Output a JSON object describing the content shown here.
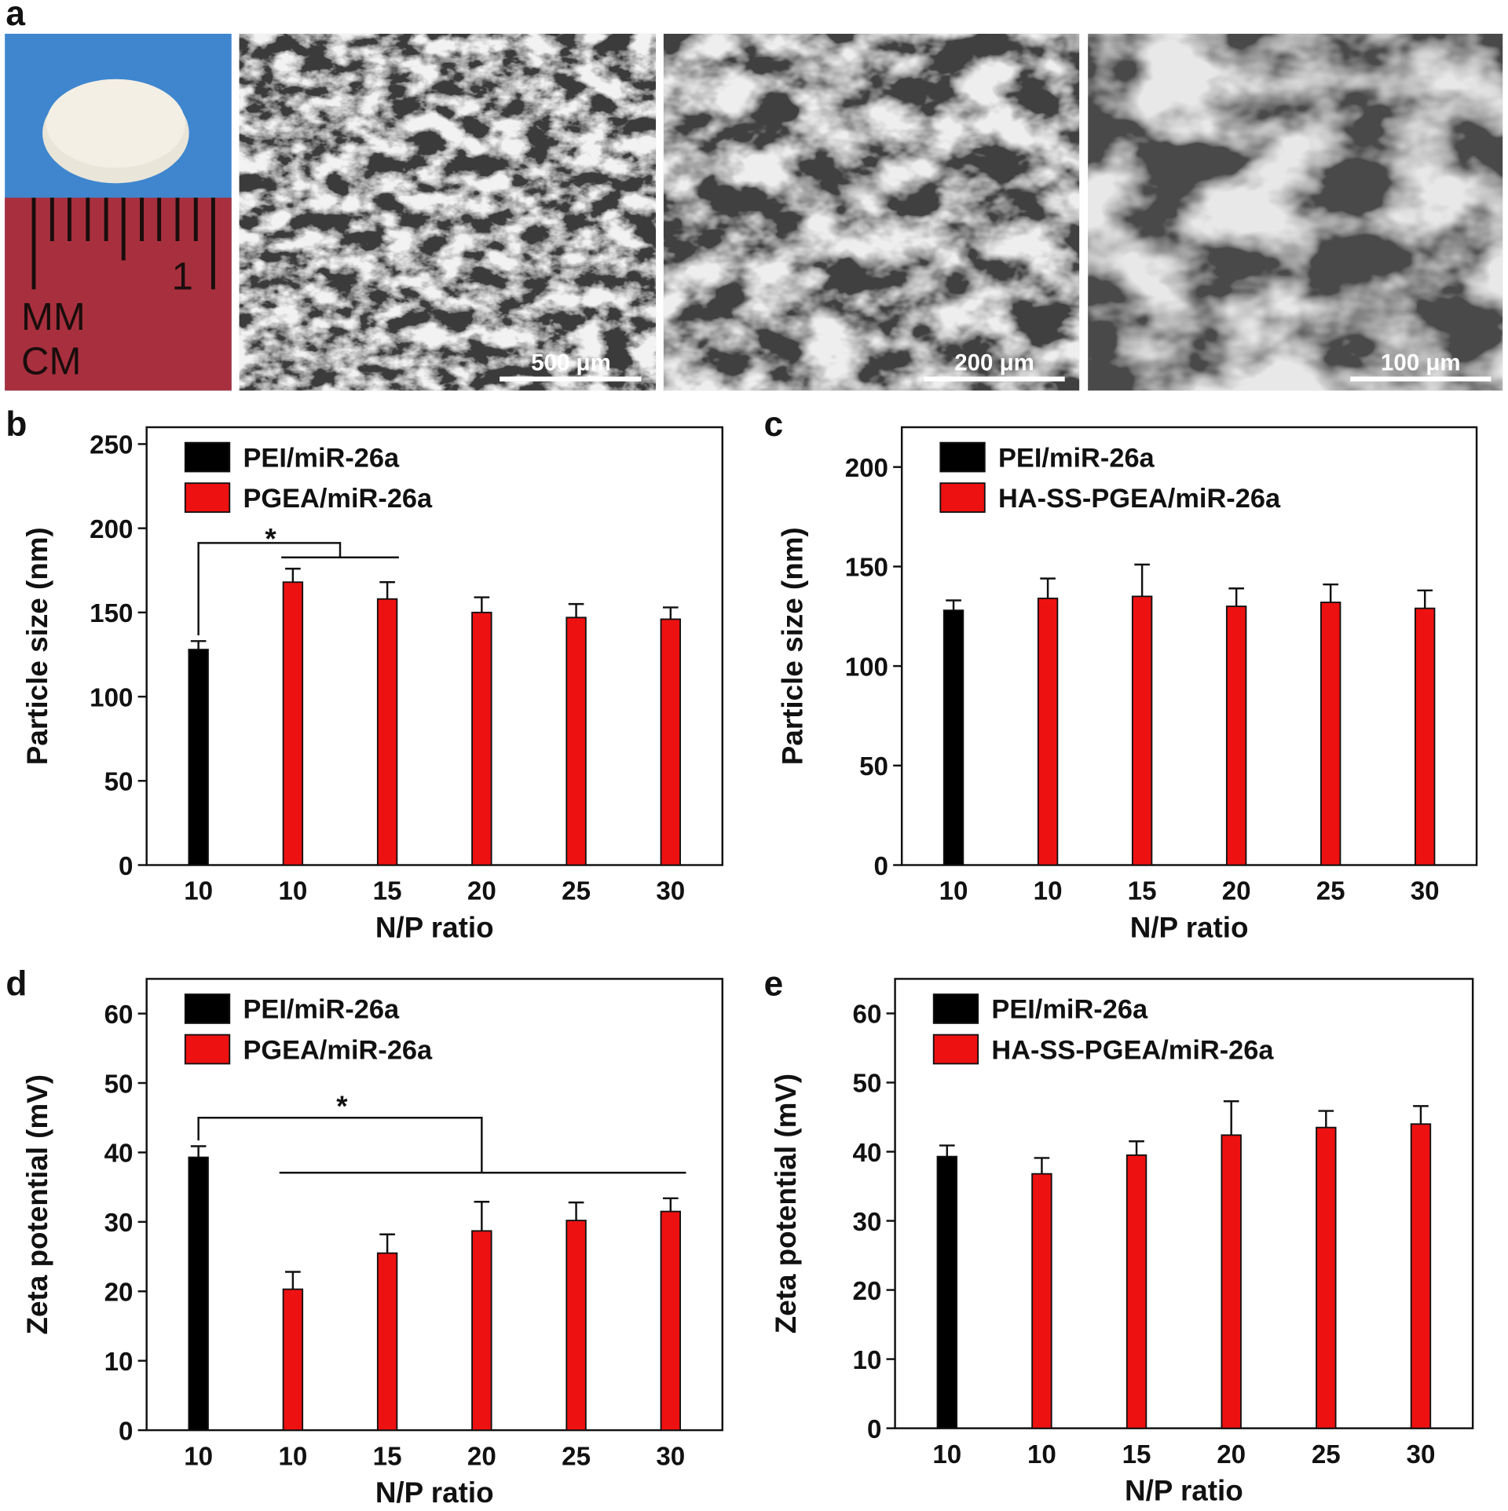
{
  "panel_a": {
    "label": "a",
    "ruler_texts": [
      "1",
      "MM",
      "CM"
    ],
    "scale_bars": [
      "500 μm",
      "200 μm",
      "100 μm"
    ]
  },
  "chart_data": [
    {
      "type": "bar",
      "panel_label": "b",
      "xlabel": "N/P ratio",
      "ylabel": "Particle size (nm)",
      "categories": [
        "10",
        "10",
        "15",
        "20",
        "25",
        "30"
      ],
      "series": [
        {
          "name": "PEI/miR-26a",
          "color": "#000000",
          "values": [
            128,
            null,
            null,
            null,
            null,
            null
          ],
          "errors": [
            5,
            null,
            null,
            null,
            null,
            null
          ]
        },
        {
          "name": "PGEA/miR-26a",
          "color": "#ee1111",
          "values": [
            null,
            168,
            158,
            150,
            147,
            146
          ],
          "errors": [
            null,
            8,
            10,
            9,
            8,
            7
          ]
        }
      ],
      "ylim": [
        0,
        260
      ],
      "yticks": [
        0,
        50,
        100,
        150,
        200,
        250
      ],
      "legend": "upper left",
      "annotations": [
        "*"
      ]
    },
    {
      "type": "bar",
      "panel_label": "c",
      "xlabel": "N/P ratio",
      "ylabel": "Particle size (nm)",
      "categories": [
        "10",
        "10",
        "15",
        "20",
        "25",
        "30"
      ],
      "series": [
        {
          "name": "PEI/miR-26a",
          "color": "#000000",
          "values": [
            128,
            null,
            null,
            null,
            null,
            null
          ],
          "errors": [
            5,
            null,
            null,
            null,
            null,
            null
          ]
        },
        {
          "name": "HA-SS-PGEA/miR-26a",
          "color": "#ee1111",
          "values": [
            null,
            134,
            135,
            130,
            132,
            129
          ],
          "errors": [
            null,
            10,
            16,
            9,
            9,
            9
          ]
        }
      ],
      "ylim": [
        0,
        220
      ],
      "yticks": [
        0,
        50,
        100,
        150,
        200
      ],
      "legend": "upper left"
    },
    {
      "type": "bar",
      "panel_label": "d",
      "xlabel": "N/P ratio",
      "ylabel": "Zeta potential (mV)",
      "categories": [
        "10",
        "10",
        "15",
        "20",
        "25",
        "30"
      ],
      "series": [
        {
          "name": "PEI/miR-26a",
          "color": "#000000",
          "values": [
            39.3,
            null,
            null,
            null,
            null,
            null
          ],
          "errors": [
            1.6,
            null,
            null,
            null,
            null,
            null
          ]
        },
        {
          "name": "PGEA/miR-26a",
          "color": "#ee1111",
          "values": [
            null,
            20.3,
            25.5,
            28.7,
            30.2,
            31.5
          ],
          "errors": [
            null,
            2.5,
            2.7,
            4.2,
            2.6,
            1.9
          ]
        }
      ],
      "ylim": [
        0,
        65
      ],
      "yticks": [
        0,
        10,
        20,
        30,
        40,
        50,
        60
      ],
      "legend": "upper left",
      "annotations": [
        "*"
      ]
    },
    {
      "type": "bar",
      "panel_label": "e",
      "xlabel": "N/P ratio",
      "ylabel": "Zeta potential (mV)",
      "categories": [
        "10",
        "10",
        "15",
        "20",
        "25",
        "30"
      ],
      "series": [
        {
          "name": "PEI/miR-26a",
          "color": "#000000",
          "values": [
            39.3,
            null,
            null,
            null,
            null,
            null
          ],
          "errors": [
            1.6,
            null,
            null,
            null,
            null,
            null
          ]
        },
        {
          "name": "HA-SS-PGEA/miR-26a",
          "color": "#ee1111",
          "values": [
            null,
            36.8,
            39.5,
            42.4,
            43.5,
            44
          ],
          "errors": [
            null,
            2.3,
            2,
            4.9,
            2.4,
            2.6
          ]
        }
      ],
      "ylim": [
        0,
        65
      ],
      "yticks": [
        0,
        10,
        20,
        30,
        40,
        50,
        60
      ],
      "legend": "upper left"
    }
  ]
}
